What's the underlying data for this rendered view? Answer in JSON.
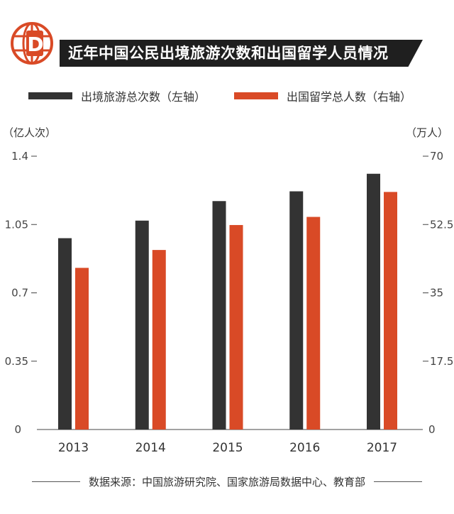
{
  "header": {
    "title": "近年中国公民出境旅游次数和出国留学人员情况",
    "logo_letter": "D"
  },
  "legend": [
    {
      "label": "出境旅游总次数（左轴）",
      "color": "#333333"
    },
    {
      "label": "出国留学总人数（右轴）",
      "color": "#d94a26"
    }
  ],
  "units": {
    "left": "（亿人次）",
    "right": "（万人）"
  },
  "colors": {
    "accent": "#d94a26",
    "dark": "#333333",
    "title_bg": "#1f1f1f"
  },
  "footer": {
    "source": "数据来源：中国旅游研究院、国家旅游局数据中心、教育部"
  },
  "chart_data": {
    "type": "bar",
    "title": "近年中国公民出境旅游次数和出国留学人员情况",
    "categories": [
      "2013",
      "2014",
      "2015",
      "2016",
      "2017"
    ],
    "series": [
      {
        "name": "出境旅游总次数（左轴）",
        "axis": "left",
        "values": [
          0.98,
          1.07,
          1.17,
          1.22,
          1.31
        ]
      },
      {
        "name": "出国留学总人数（右轴）",
        "axis": "right",
        "values": [
          41.4,
          45.98,
          52.37,
          54.45,
          60.84
        ]
      }
    ],
    "y_left": {
      "label": "（亿人次）",
      "lim": [
        0,
        1.4
      ],
      "ticks": [
        "0",
        "0.35",
        "0.7",
        "1.05",
        "1.4"
      ]
    },
    "y_right": {
      "label": "（万人）",
      "lim": [
        0,
        70
      ],
      "ticks": [
        "0",
        "17.5",
        "35",
        "52.5",
        "70"
      ]
    },
    "grid": false
  }
}
